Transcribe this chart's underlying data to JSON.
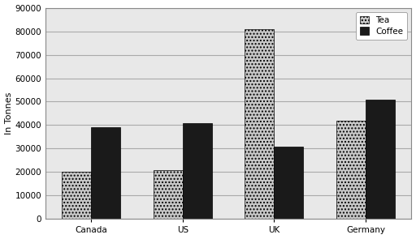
{
  "categories": [
    "Canada",
    "US",
    "UK",
    "Germany"
  ],
  "tea_values": [
    20000,
    21000,
    81000,
    42000
  ],
  "coffee_values": [
    39000,
    41000,
    31000,
    51000
  ],
  "ylabel": "In Tonnes",
  "ylim": [
    0,
    90000
  ],
  "yticks": [
    0,
    10000,
    20000,
    30000,
    40000,
    50000,
    60000,
    70000,
    80000,
    90000
  ],
  "tea_color": "#c8c8c8",
  "tea_hatch": "....",
  "coffee_color": "#1a1a1a",
  "coffee_hatch": "",
  "legend_labels": [
    "Tea",
    "Coffee"
  ],
  "bar_width": 0.32,
  "background_color": "#ffffff",
  "plot_bg_color": "#e8e8e8",
  "grid_color": "#aaaaaa",
  "axis_fontsize": 8,
  "tick_fontsize": 7.5
}
